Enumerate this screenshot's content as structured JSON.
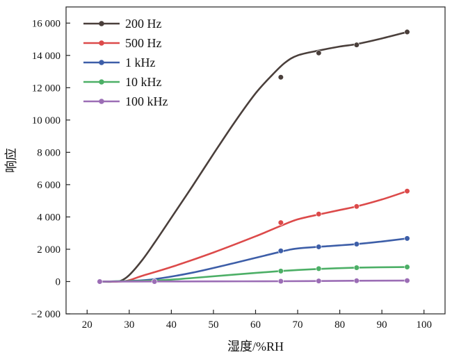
{
  "chart_data": {
    "type": "line",
    "title": "",
    "xlabel": "湿度/%RH",
    "ylabel": "响应",
    "xlim": [
      15,
      105
    ],
    "ylim": [
      -2000,
      17000
    ],
    "xticks": [
      20,
      30,
      40,
      50,
      60,
      70,
      80,
      90,
      100
    ],
    "yticks": [
      -2000,
      0,
      2000,
      4000,
      6000,
      8000,
      10000,
      12000,
      14000,
      16000
    ],
    "xtick_labels": [
      "20",
      "30",
      "40",
      "50",
      "60",
      "70",
      "80",
      "90",
      "100"
    ],
    "ytick_labels": [
      "−2 000",
      "0",
      "2 000",
      "4 000",
      "6 000",
      "8 000",
      "10 000",
      "12 000",
      "14 000",
      "16 000"
    ],
    "grid": false,
    "legend_position": "top-left",
    "series": [
      {
        "name": "200 Hz",
        "color": "#4a3f3b",
        "points": [
          [
            23,
            0
          ],
          [
            36,
            -10
          ],
          [
            66,
            12650
          ],
          [
            75,
            14150
          ],
          [
            84,
            14650
          ],
          [
            96,
            15450
          ]
        ],
        "curve": [
          [
            23,
            -10
          ],
          [
            26,
            -10
          ],
          [
            28,
            50
          ],
          [
            30,
            400
          ],
          [
            33,
            1300
          ],
          [
            36,
            2400
          ],
          [
            40,
            3950
          ],
          [
            45,
            5900
          ],
          [
            50,
            7900
          ],
          [
            55,
            9850
          ],
          [
            60,
            11650
          ],
          [
            64,
            12800
          ],
          [
            67,
            13550
          ],
          [
            70,
            14000
          ],
          [
            75,
            14300
          ],
          [
            80,
            14550
          ],
          [
            84,
            14700
          ],
          [
            90,
            15050
          ],
          [
            96,
            15450
          ]
        ]
      },
      {
        "name": "500 Hz",
        "color": "#dc4a4a",
        "points": [
          [
            23,
            0
          ],
          [
            36,
            0
          ],
          [
            66,
            3650
          ],
          [
            75,
            4180
          ],
          [
            84,
            4650
          ],
          [
            96,
            5600
          ]
        ],
        "curve": [
          [
            23,
            0
          ],
          [
            29,
            30
          ],
          [
            33,
            350
          ],
          [
            40,
            900
          ],
          [
            50,
            1800
          ],
          [
            60,
            2800
          ],
          [
            66,
            3450
          ],
          [
            70,
            3850
          ],
          [
            75,
            4150
          ],
          [
            80,
            4430
          ],
          [
            84,
            4650
          ],
          [
            90,
            5080
          ],
          [
            96,
            5600
          ]
        ]
      },
      {
        "name": "1 kHz",
        "color": "#3d5ea8",
        "points": [
          [
            23,
            0
          ],
          [
            36,
            0
          ],
          [
            66,
            1900
          ],
          [
            75,
            2150
          ],
          [
            84,
            2320
          ],
          [
            96,
            2670
          ]
        ],
        "curve": [
          [
            23,
            0
          ],
          [
            30,
            40
          ],
          [
            36,
            150
          ],
          [
            45,
            550
          ],
          [
            55,
            1150
          ],
          [
            66,
            1850
          ],
          [
            70,
            2050
          ],
          [
            75,
            2150
          ],
          [
            84,
            2320
          ],
          [
            90,
            2480
          ],
          [
            96,
            2670
          ]
        ]
      },
      {
        "name": "10 kHz",
        "color": "#4caf66",
        "points": [
          [
            23,
            0
          ],
          [
            36,
            0
          ],
          [
            66,
            650
          ],
          [
            75,
            800
          ],
          [
            84,
            860
          ],
          [
            96,
            900
          ]
        ],
        "curve": [
          [
            23,
            0
          ],
          [
            36,
            60
          ],
          [
            45,
            220
          ],
          [
            55,
            430
          ],
          [
            66,
            650
          ],
          [
            75,
            780
          ],
          [
            84,
            860
          ],
          [
            96,
            900
          ]
        ]
      },
      {
        "name": "100 kHz",
        "color": "#9b6db5",
        "points": [
          [
            23,
            0
          ],
          [
            36,
            0
          ],
          [
            66,
            20
          ],
          [
            75,
            35
          ],
          [
            84,
            50
          ],
          [
            96,
            60
          ]
        ],
        "curve": [
          [
            23,
            0
          ],
          [
            36,
            5
          ],
          [
            50,
            12
          ],
          [
            66,
            20
          ],
          [
            75,
            35
          ],
          [
            84,
            50
          ],
          [
            96,
            60
          ]
        ]
      }
    ]
  }
}
